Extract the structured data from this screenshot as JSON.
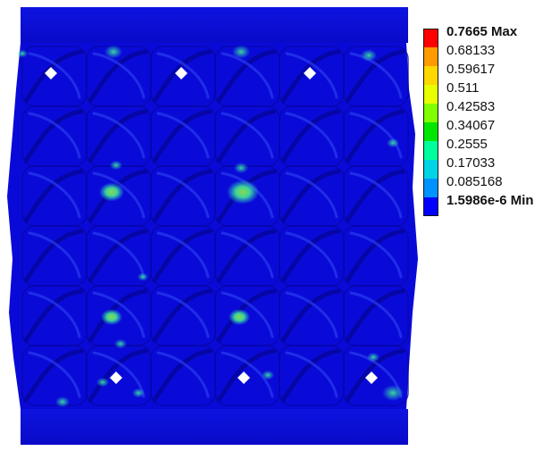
{
  "legend": {
    "entries": [
      {
        "label": "0.7665 Max",
        "color": "#ff0000",
        "bold": true
      },
      {
        "label": "0.68133",
        "color": "#ff9a00",
        "bold": false
      },
      {
        "label": "0.59617",
        "color": "#ffd800",
        "bold": false
      },
      {
        "label": "0.511",
        "color": "#e8ff00",
        "bold": false
      },
      {
        "label": "0.42583",
        "color": "#80ff00",
        "bold": false
      },
      {
        "label": "0.34067",
        "color": "#00e600",
        "bold": false
      },
      {
        "label": "0.2555",
        "color": "#00ff9c",
        "bold": false
      },
      {
        "label": "0.17033",
        "color": "#00d5e6",
        "bold": false
      },
      {
        "label": "0.085168",
        "color": "#0092ff",
        "bold": false
      },
      {
        "label": "1.5986e-6 Min",
        "color": "#0000ff",
        "bold": true
      }
    ]
  },
  "model": {
    "base_color": "#0a0ad8",
    "shade_color": "#0606a6",
    "highlight_color": "#2a3cf0",
    "hotspot_colors": [
      "#22c8c8",
      "#3fd39a",
      "#8ad84a"
    ]
  }
}
